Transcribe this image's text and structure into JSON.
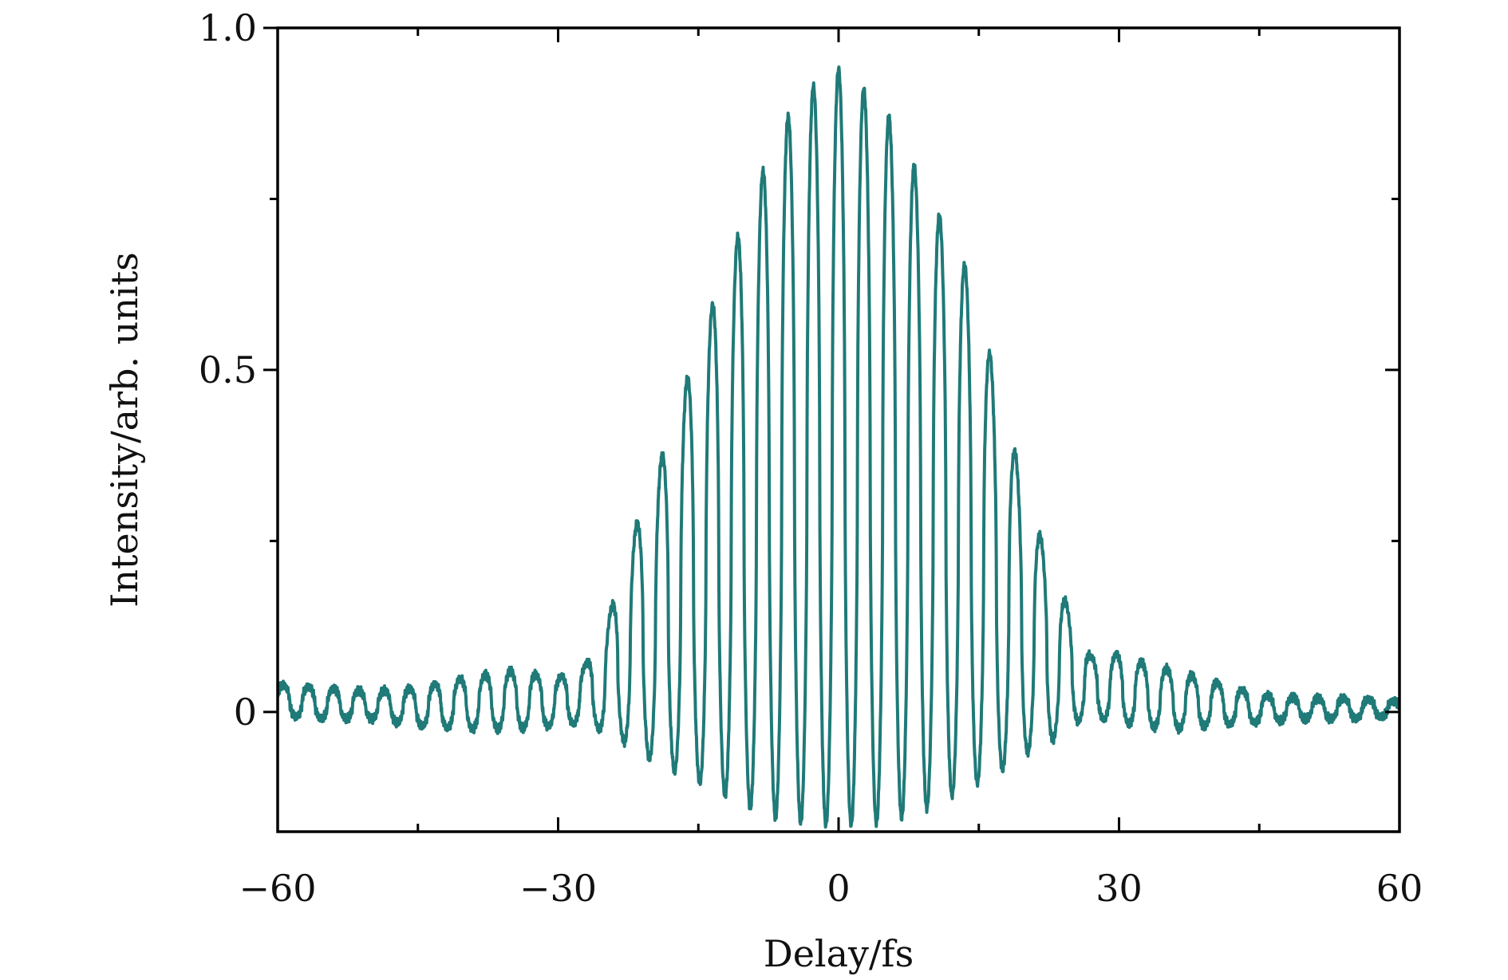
{
  "chart_data": {
    "type": "line",
    "title": "",
    "xlabel": "Delay/fs",
    "ylabel": "Intensity/arb. units",
    "xlim": [
      -60,
      60
    ],
    "ylim": [
      -0.175,
      1.0
    ],
    "x_major_ticks": [
      -60,
      -30,
      0,
      30,
      60
    ],
    "x_major_tick_labels": [
      "−60",
      "−30",
      "0",
      "30",
      "60"
    ],
    "x_minor_ticks": [
      -45,
      -15,
      15,
      45
    ],
    "y_major_ticks": [
      0,
      0.5,
      1.0
    ],
    "y_major_tick_labels": [
      "0",
      "0.5",
      "1.0"
    ],
    "y_minor_ticks": [
      0.25,
      0.75
    ],
    "grid": false,
    "legend": "none",
    "series": [
      {
        "color": "#1f7a78",
        "description": "interferometric autocorrelation trace",
        "fringe_period_fs": 2.7,
        "upper_envelope": [
          [
            -60,
            0.04
          ],
          [
            -55,
            0.035
          ],
          [
            -50,
            0.03
          ],
          [
            -45,
            0.035
          ],
          [
            -40,
            0.05
          ],
          [
            -35,
            0.06
          ],
          [
            -30,
            0.05
          ],
          [
            -27,
            0.07
          ],
          [
            -25,
            0.12
          ],
          [
            -22,
            0.26
          ],
          [
            -20,
            0.33
          ],
          [
            -18,
            0.41
          ],
          [
            -15,
            0.54
          ],
          [
            -12,
            0.65
          ],
          [
            -9,
            0.76
          ],
          [
            -6,
            0.86
          ],
          [
            -3,
            0.91
          ],
          [
            -1,
            0.94
          ],
          [
            0,
            0.94
          ],
          [
            2,
            0.92
          ],
          [
            5,
            0.88
          ],
          [
            8,
            0.8
          ],
          [
            11,
            0.72
          ],
          [
            14,
            0.64
          ],
          [
            17,
            0.48
          ],
          [
            20,
            0.32
          ],
          [
            23,
            0.2
          ],
          [
            25,
            0.14
          ],
          [
            27,
            0.08
          ],
          [
            30,
            0.085
          ],
          [
            33,
            0.07
          ],
          [
            36,
            0.06
          ],
          [
            40,
            0.045
          ],
          [
            45,
            0.025
          ],
          [
            50,
            0.02
          ],
          [
            55,
            0.02
          ],
          [
            60,
            0.015
          ]
        ],
        "lower_envelope": [
          [
            -60,
            -0.005
          ],
          [
            -55,
            -0.01
          ],
          [
            -50,
            -0.01
          ],
          [
            -45,
            -0.02
          ],
          [
            -40,
            -0.025
          ],
          [
            -35,
            -0.025
          ],
          [
            -30,
            -0.02
          ],
          [
            -27,
            -0.015
          ],
          [
            -25,
            -0.03
          ],
          [
            -22,
            -0.05
          ],
          [
            -20,
            -0.07
          ],
          [
            -17,
            -0.09
          ],
          [
            -14,
            -0.11
          ],
          [
            -11,
            -0.13
          ],
          [
            -8,
            -0.15
          ],
          [
            -5,
            -0.16
          ],
          [
            -2,
            -0.165
          ],
          [
            0,
            -0.165
          ],
          [
            2,
            -0.165
          ],
          [
            5,
            -0.16
          ],
          [
            8,
            -0.15
          ],
          [
            11,
            -0.13
          ],
          [
            14,
            -0.11
          ],
          [
            17,
            -0.09
          ],
          [
            20,
            -0.06
          ],
          [
            23,
            -0.04
          ],
          [
            25,
            -0.015
          ],
          [
            28,
            -0.01
          ],
          [
            32,
            -0.02
          ],
          [
            36,
            -0.025
          ],
          [
            40,
            -0.02
          ],
          [
            45,
            -0.015
          ],
          [
            50,
            -0.01
          ],
          [
            55,
            -0.01
          ],
          [
            60,
            -0.005
          ]
        ]
      }
    ]
  }
}
